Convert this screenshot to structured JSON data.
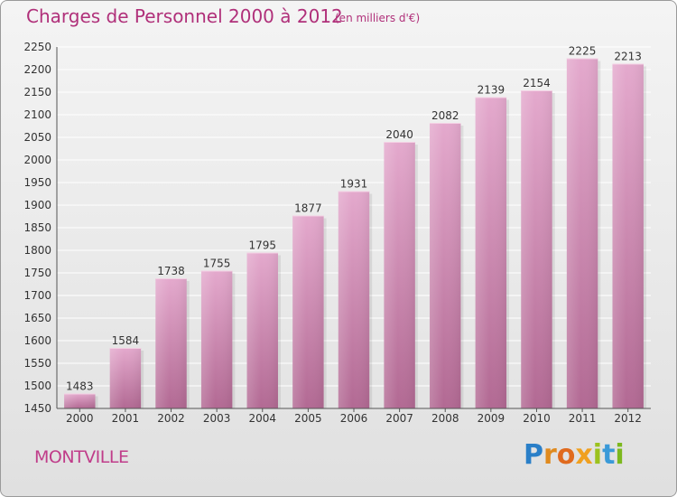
{
  "header": {
    "title": "Charges de Personnel 2000 à 2012",
    "subtitle": "(en milliers d'€)"
  },
  "footer": {
    "commune": "MONTVILLE",
    "logo": "Proxiti",
    "logo_letters": [
      "P",
      "r",
      "o",
      "x",
      "i",
      "t",
      "i"
    ],
    "logo_colors": [
      "#2a7fc8",
      "#e08a1e",
      "#e06a1e",
      "#f0a020",
      "#9cc21e",
      "#3a9ad8",
      "#7cb81e"
    ]
  },
  "colors": {
    "bar": "#d58ab7",
    "bar_top": "#e3a6cc",
    "bar_bottom": "#b56a96",
    "title": "#b0307a",
    "grid": "#ffffff"
  },
  "chart_data": {
    "type": "bar",
    "title": "Charges de Personnel 2000 à 2012",
    "subtitle": "(en milliers d'€)",
    "categories": [
      "2000",
      "2001",
      "2002",
      "2003",
      "2004",
      "2005",
      "2006",
      "2007",
      "2008",
      "2009",
      "2010",
      "2011",
      "2012"
    ],
    "values": [
      1483,
      1584,
      1738,
      1755,
      1795,
      1877,
      1931,
      2040,
      2082,
      2139,
      2154,
      2225,
      2213
    ],
    "ylim": [
      1450,
      2250
    ],
    "yticks": [
      1450,
      1500,
      1550,
      1600,
      1650,
      1700,
      1750,
      1800,
      1850,
      1900,
      1950,
      2000,
      2050,
      2100,
      2150,
      2200,
      2250
    ],
    "grid": true
  }
}
